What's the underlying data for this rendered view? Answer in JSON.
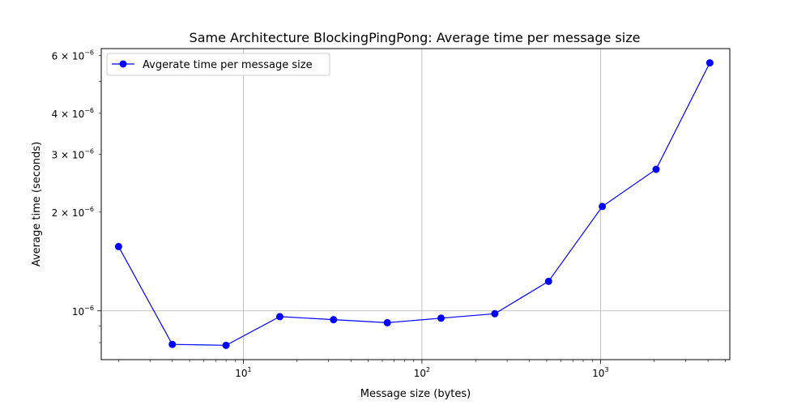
{
  "chart_data": {
    "type": "line",
    "title": "Same Architecture BlockingPingPong: Average time per message size",
    "xlabel": "Message size (bytes)",
    "ylabel": "Average time (seconds)",
    "xscale": "log",
    "yscale": "log",
    "xlim": [
      1.6,
      5300
    ],
    "ylim": [
      7.1e-07,
      6.3e-06
    ],
    "grid": "major",
    "legend_position": "top-left",
    "x_ticks": [
      {
        "value": 10,
        "base": "10",
        "exp": "1"
      },
      {
        "value": 100,
        "base": "10",
        "exp": "2"
      },
      {
        "value": 1000,
        "base": "10",
        "exp": "3"
      }
    ],
    "y_ticks": [
      {
        "value": 1e-06,
        "mant": "",
        "base": "10",
        "exp": "−6"
      },
      {
        "value": 2e-06,
        "mant": "2 × ",
        "base": "10",
        "exp": "−6"
      },
      {
        "value": 3e-06,
        "mant": "3 × ",
        "base": "10",
        "exp": "−6"
      },
      {
        "value": 4e-06,
        "mant": "4 × ",
        "base": "10",
        "exp": "−6"
      },
      {
        "value": 6e-06,
        "mant": "6 × ",
        "base": "10",
        "exp": "−6"
      }
    ],
    "series": [
      {
        "name": "Avgerate time per message size",
        "color": "#0000ff",
        "marker": "circle",
        "x": [
          2,
          4,
          8,
          16,
          32,
          64,
          128,
          256,
          512,
          1024,
          2048,
          4096
        ],
        "y": [
          1.57e-06,
          7.9e-07,
          7.85e-07,
          9.6e-07,
          9.4e-07,
          9.2e-07,
          9.5e-07,
          9.8e-07,
          1.23e-06,
          2.08e-06,
          2.7e-06,
          5.7e-06
        ]
      }
    ]
  }
}
